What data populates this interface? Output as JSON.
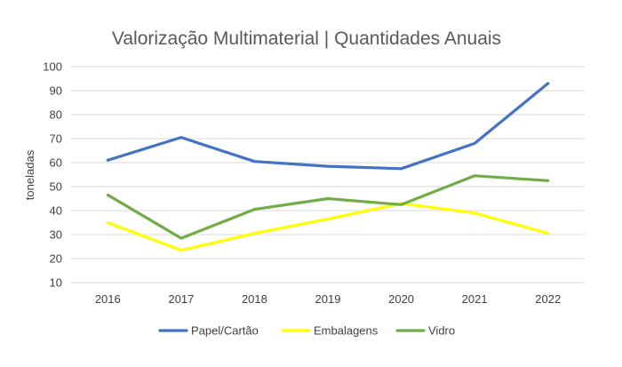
{
  "chart_data": {
    "type": "line",
    "title": "Valorização Multimaterial | Quantidades Anuais",
    "xlabel": "",
    "ylabel": "toneladas",
    "categories": [
      "2016",
      "2017",
      "2018",
      "2019",
      "2020",
      "2021",
      "2022"
    ],
    "ylim": [
      10,
      100
    ],
    "yticks": [
      10,
      20,
      30,
      40,
      50,
      60,
      70,
      80,
      90,
      100
    ],
    "grid": true,
    "legend_position": "bottom",
    "series": [
      {
        "name": "Papel/Cartão",
        "color": "#4472C4",
        "values": [
          61,
          70.5,
          60.5,
          58.5,
          57.5,
          68,
          93
        ]
      },
      {
        "name": "Embalagens",
        "color": "#FFFF00",
        "values": [
          35,
          23.5,
          30.5,
          36.5,
          43,
          39,
          30.5
        ]
      },
      {
        "name": "Vidro",
        "color": "#70AD47",
        "values": [
          46.5,
          28.5,
          40.5,
          45,
          42.5,
          54.5,
          52.5
        ]
      }
    ]
  }
}
